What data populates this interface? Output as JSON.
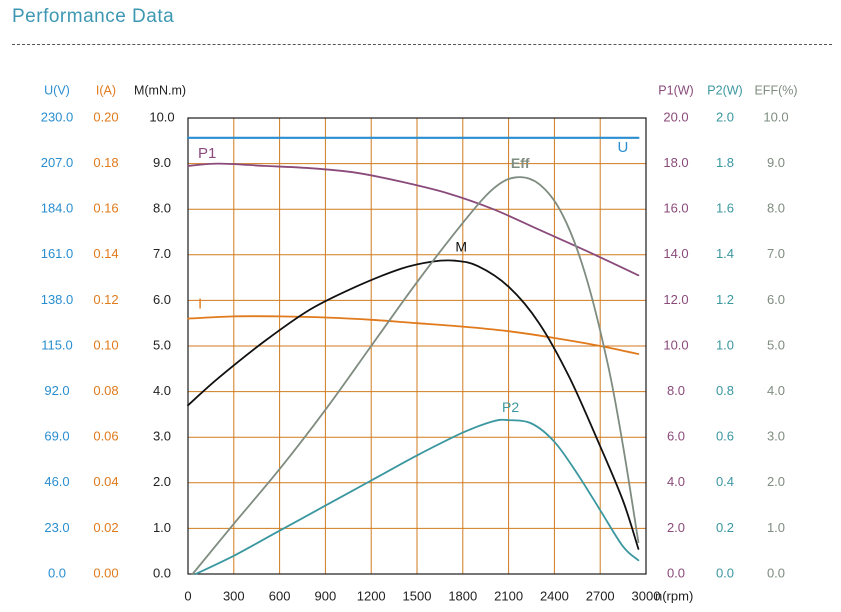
{
  "header": {
    "title": "Performance Data"
  },
  "colors": {
    "grid": "#d07a1e",
    "frame": "#1a1a1a",
    "U": "#2a8ed0",
    "I": "#e07a1c",
    "M": "#111111",
    "P1": "#8a4a7a",
    "P2": "#3b97a0",
    "Eff": "#7f8c80"
  },
  "chart_data": {
    "type": "line",
    "title": "Performance Data",
    "xlabel": "n(rpm)",
    "xlim": [
      0,
      3000
    ],
    "x_ticks": [
      {
        "value": 0,
        "label": "0"
      },
      {
        "value": 300,
        "label": "300"
      },
      {
        "value": 600,
        "label": "600"
      },
      {
        "value": 900,
        "label": "900"
      },
      {
        "value": 1200,
        "label": "1200"
      },
      {
        "value": 1500,
        "label": "1500"
      },
      {
        "value": 1800,
        "label": "1800"
      },
      {
        "value": 2100,
        "label": "2100"
      },
      {
        "value": 2400,
        "label": "2400"
      },
      {
        "value": 2700,
        "label": "2700"
      },
      {
        "value": 3000,
        "label": "3000"
      }
    ],
    "left_axes": [
      {
        "name": "U",
        "label": "U(V)",
        "color_key": "U",
        "ticks": [
          "0.0",
          "23.0",
          "46.0",
          "69.0",
          "92.0",
          "115.0",
          "138.0",
          "161.0",
          "184.0",
          "207.0",
          "230.0"
        ]
      },
      {
        "name": "I",
        "label": "I(A)",
        "color_key": "I",
        "ticks": [
          "0.00",
          "0.02",
          "0.04",
          "0.06",
          "0.08",
          "0.10",
          "0.12",
          "0.14",
          "0.16",
          "0.18",
          "0.20"
        ]
      },
      {
        "name": "M",
        "label": "M(mN.m)",
        "color_key": "M",
        "ticks": [
          "0.0",
          "1.0",
          "2.0",
          "3.0",
          "4.0",
          "5.0",
          "6.0",
          "7.0",
          "8.0",
          "9.0",
          "10.0"
        ]
      }
    ],
    "right_axes": [
      {
        "name": "P1",
        "label": "P1(W)",
        "color_key": "P1",
        "ticks": [
          "0.0",
          "2.0",
          "4.0",
          "6.0",
          "8.0",
          "10.0",
          "12.0",
          "14.0",
          "16.0",
          "18.0",
          "20.0"
        ]
      },
      {
        "name": "P2",
        "label": "P2(W)",
        "color_key": "P2",
        "ticks": [
          "0.0",
          "0.2",
          "0.4",
          "0.6",
          "0.8",
          "1.0",
          "1.2",
          "1.4",
          "1.6",
          "1.8",
          "2.0"
        ]
      },
      {
        "name": "EFF",
        "label": "EFF(%)",
        "color_key": "Eff",
        "ticks": [
          "0.0",
          "1.0",
          "2.0",
          "3.0",
          "4.0",
          "5.0",
          "6.0",
          "7.0",
          "8.0",
          "9.0",
          "10.0"
        ]
      }
    ],
    "series": [
      {
        "name": "U",
        "label": "U",
        "axis": "U",
        "color_key": "U",
        "x": [
          0,
          2950
        ],
        "values": [
          220,
          220
        ]
      },
      {
        "name": "P1",
        "label": "P1",
        "axis": "P1",
        "color_key": "P1",
        "x": [
          0,
          200,
          500,
          800,
          1100,
          1400,
          1700,
          2000,
          2300,
          2600,
          2950
        ],
        "values": [
          17.9,
          18.0,
          17.9,
          17.8,
          17.6,
          17.2,
          16.7,
          16.0,
          15.1,
          14.2,
          13.1
        ]
      },
      {
        "name": "I",
        "label": "I",
        "axis": "I",
        "color_key": "I",
        "x": [
          0,
          300,
          600,
          900,
          1200,
          1500,
          1800,
          2100,
          2400,
          2700,
          2950
        ],
        "values": [
          0.112,
          0.113,
          0.113,
          0.1125,
          0.1115,
          0.11,
          0.1085,
          0.1065,
          0.1035,
          0.1,
          0.0965
        ]
      },
      {
        "name": "M",
        "label": "M",
        "axis": "M",
        "color_key": "M",
        "x": [
          0,
          200,
          500,
          800,
          1100,
          1400,
          1600,
          1750,
          1900,
          2100,
          2300,
          2500,
          2700,
          2850,
          2950
        ],
        "values": [
          3.7,
          4.3,
          5.1,
          5.8,
          6.3,
          6.7,
          6.85,
          6.87,
          6.75,
          6.3,
          5.5,
          4.3,
          2.8,
          1.6,
          0.55
        ]
      },
      {
        "name": "P2",
        "label": "P2",
        "axis": "P2",
        "color_key": "P2",
        "x": [
          50,
          300,
          600,
          900,
          1200,
          1500,
          1800,
          2000,
          2100,
          2250,
          2400,
          2550,
          2700,
          2850,
          2950
        ],
        "values": [
          0.0,
          0.08,
          0.19,
          0.3,
          0.41,
          0.52,
          0.62,
          0.67,
          0.675,
          0.66,
          0.58,
          0.44,
          0.28,
          0.12,
          0.06
        ]
      },
      {
        "name": "Eff",
        "label": "Eff",
        "axis": "EFF",
        "color_key": "Eff",
        "x": [
          30,
          300,
          600,
          900,
          1200,
          1500,
          1800,
          2000,
          2150,
          2300,
          2450,
          2600,
          2750,
          2850,
          2950
        ],
        "values": [
          0.0,
          1.1,
          2.3,
          3.6,
          5.0,
          6.4,
          7.7,
          8.45,
          8.7,
          8.55,
          7.9,
          6.6,
          4.6,
          2.8,
          0.7
        ]
      }
    ]
  }
}
